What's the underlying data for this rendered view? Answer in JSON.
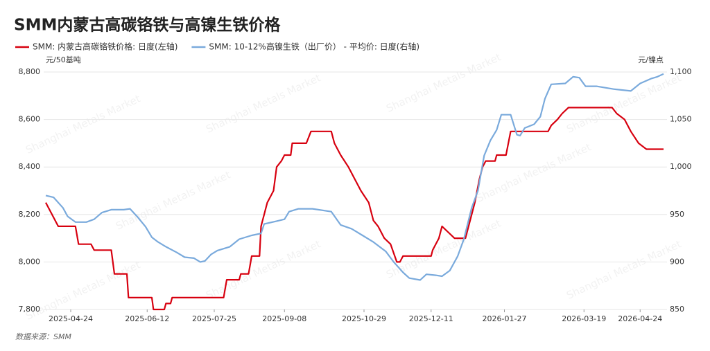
{
  "chart_data": {
    "type": "line",
    "title": "SMM内蒙古高碳铬铁与高镍生铁价格",
    "y_label": "元/50基吨",
    "y2_label": "元/镍点",
    "source": "数据来源：SMM",
    "watermark": "Shanghai Metals Market",
    "grid": true,
    "legend": "top-left",
    "xlim": [
      "2025-04-08",
      "2026-05-09"
    ],
    "xticks": [
      "2025-04-24",
      "2025-06-12",
      "2025-07-25",
      "2025-09-08",
      "2025-10-29",
      "2025-12-11",
      "2026-01-27",
      "2026-03-19",
      "2026-04-24"
    ],
    "ylim": [
      7800,
      8800
    ],
    "yticks": [
      {
        "value": 7800,
        "label": "7,800"
      },
      {
        "value": 8000,
        "label": "8,000"
      },
      {
        "value": 8200,
        "label": "8,200"
      },
      {
        "value": 8400,
        "label": "8,400"
      },
      {
        "value": 8600,
        "label": "8,600"
      },
      {
        "value": 8800,
        "label": "8,800"
      }
    ],
    "y2lim": [
      850,
      1100
    ],
    "y2ticks": [
      850,
      900,
      950,
      {
        "value": 1000,
        "label": "1,000"
      },
      {
        "value": 1050,
        "label": "1,050"
      },
      {
        "value": 1100,
        "label": "1,100"
      }
    ],
    "series": [
      {
        "name": "SMM: 内蒙古高碳铬铁价格: 日度(左轴)",
        "color": "#d7000f",
        "axis": "y",
        "x": [
          "2025-04-08",
          "2025-04-12",
          "2025-04-16",
          "2025-04-27",
          "2025-04-29",
          "2025-05-07",
          "2025-05-09",
          "2025-05-20",
          "2025-05-22",
          "2025-05-30",
          "2025-05-31",
          "2025-06-15",
          "2025-06-16",
          "2025-06-23",
          "2025-06-24",
          "2025-06-27",
          "2025-06-28",
          "2025-07-31",
          "2025-08-02",
          "2025-08-10",
          "2025-08-11",
          "2025-08-16",
          "2025-08-18",
          "2025-08-23",
          "2025-08-24",
          "2025-08-28",
          "2025-09-01",
          "2025-09-03",
          "2025-09-06",
          "2025-09-08",
          "2025-09-12",
          "2025-09-13",
          "2025-09-22",
          "2025-09-25",
          "2025-10-08",
          "2025-10-10",
          "2025-10-14",
          "2025-10-19",
          "2025-10-23",
          "2025-10-27",
          "2025-11-01",
          "2025-11-04",
          "2025-11-07",
          "2025-11-11",
          "2025-11-15",
          "2025-11-19",
          "2025-11-21",
          "2025-11-23",
          "2025-12-11",
          "2025-12-12",
          "2025-12-16",
          "2025-12-18",
          "2025-12-22",
          "2025-12-26",
          "2026-01-02",
          "2026-01-06",
          "2026-01-08",
          "2026-01-11",
          "2026-01-13",
          "2026-01-15",
          "2026-01-21",
          "2026-01-22",
          "2026-01-28",
          "2026-01-31",
          "2026-02-24",
          "2026-02-26",
          "2026-03-02",
          "2026-03-05",
          "2026-03-09",
          "2026-04-06",
          "2026-04-09",
          "2026-04-14",
          "2026-04-18",
          "2026-04-23",
          "2026-04-28",
          "2026-05-09"
        ],
        "values": [
          8250,
          8200,
          8150,
          8150,
          8075,
          8075,
          8050,
          8050,
          7950,
          7950,
          7850,
          7850,
          7800,
          7800,
          7825,
          7825,
          7850,
          7850,
          7925,
          7925,
          7950,
          7950,
          8025,
          8025,
          8150,
          8250,
          8300,
          8400,
          8425,
          8450,
          8450,
          8500,
          8500,
          8550,
          8550,
          8500,
          8450,
          8400,
          8350,
          8300,
          8250,
          8175,
          8150,
          8100,
          8075,
          8000,
          8000,
          8025,
          8025,
          8050,
          8100,
          8150,
          8125,
          8100,
          8100,
          8200,
          8250,
          8350,
          8400,
          8425,
          8425,
          8450,
          8450,
          8550,
          8550,
          8575,
          8600,
          8625,
          8650,
          8650,
          8625,
          8600,
          8550,
          8500,
          8475,
          8475
        ]
      },
      {
        "name": "SMM: 10-12%高镍生铁（出厂价） - 平均价: 日度(右轴)",
        "color": "#7aaadc",
        "axis": "y2",
        "x": [
          "2025-04-08",
          "2025-04-13",
          "2025-04-19",
          "2025-04-22",
          "2025-04-27",
          "2025-05-04",
          "2025-05-09",
          "2025-05-14",
          "2025-05-20",
          "2025-05-28",
          "2025-06-01",
          "2025-06-06",
          "2025-06-11",
          "2025-06-15",
          "2025-06-19",
          "2025-06-24",
          "2025-07-01",
          "2025-07-06",
          "2025-07-12",
          "2025-07-16",
          "2025-07-19",
          "2025-07-23",
          "2025-07-27",
          "2025-08-04",
          "2025-08-10",
          "2025-08-18",
          "2025-08-24",
          "2025-08-26",
          "2025-09-03",
          "2025-09-08",
          "2025-09-11",
          "2025-09-17",
          "2025-09-26",
          "2025-10-08",
          "2025-10-14",
          "2025-10-21",
          "2025-10-28",
          "2025-11-04",
          "2025-11-12",
          "2025-11-17",
          "2025-11-23",
          "2025-11-27",
          "2025-12-04",
          "2025-12-08",
          "2025-12-14",
          "2025-12-18",
          "2025-12-23",
          "2025-12-28",
          "2026-01-01",
          "2026-01-06",
          "2026-01-10",
          "2026-01-14",
          "2026-01-18",
          "2026-01-22",
          "2026-01-25",
          "2026-01-31",
          "2026-02-04",
          "2026-02-06",
          "2026-02-09",
          "2026-02-15",
          "2026-02-19",
          "2026-02-22",
          "2026-02-26",
          "2026-03-07",
          "2026-03-12",
          "2026-03-16",
          "2026-03-20",
          "2026-03-27",
          "2026-04-07",
          "2026-04-18",
          "2026-04-24",
          "2026-05-01",
          "2026-05-05",
          "2026-05-09"
        ],
        "values": [
          970,
          968,
          957,
          948,
          942,
          942,
          945,
          952,
          955,
          955,
          956,
          947,
          937,
          926,
          921,
          916,
          910,
          905,
          904,
          900,
          901,
          908,
          912,
          916,
          924,
          928,
          930,
          940,
          943,
          945,
          953,
          956,
          956,
          953,
          939,
          935,
          928,
          921,
          911,
          900,
          889,
          883,
          881,
          887,
          886,
          885,
          891,
          906,
          924,
          957,
          975,
          1012,
          1028,
          1039,
          1055,
          1055,
          1034,
          1033,
          1041,
          1045,
          1053,
          1072,
          1087,
          1088,
          1095,
          1094,
          1085,
          1085,
          1082,
          1080,
          1088,
          1093,
          1095,
          1098
        ]
      }
    ]
  }
}
